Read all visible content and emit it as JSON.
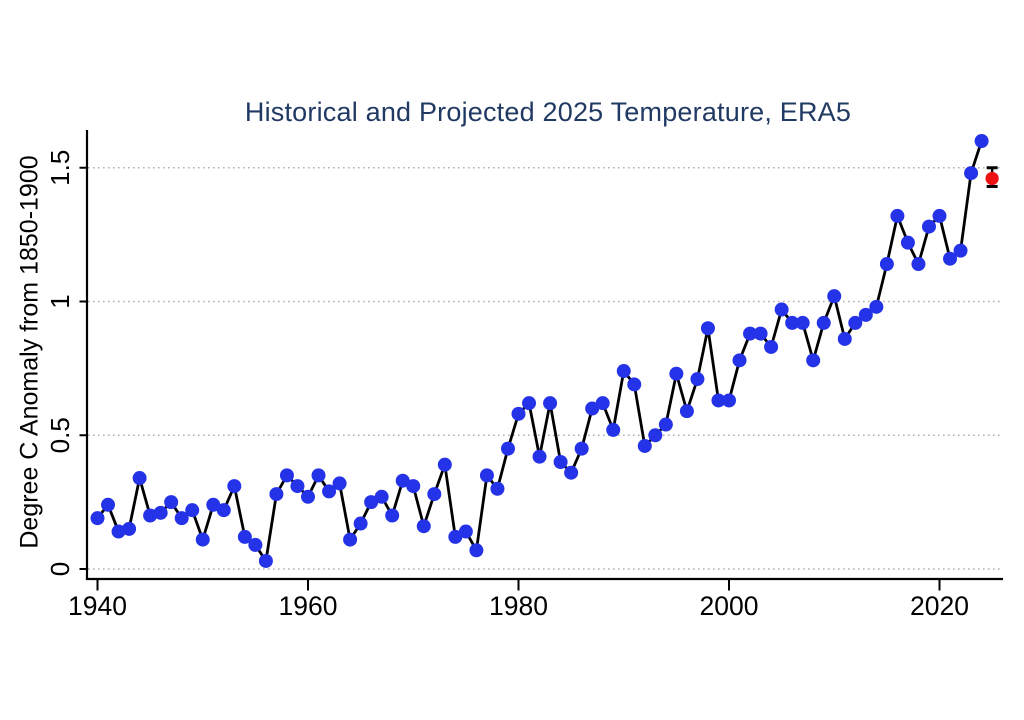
{
  "page": {
    "background": "#ffffff"
  },
  "chart_data": {
    "type": "line",
    "title": "Historical and Projected 2025 Temperature, ERA5",
    "title_color": "#213a63",
    "xlabel": "",
    "ylabel": "Degree C Anomaly from 1850-1900",
    "xlim": [
      1939,
      2026.5
    ],
    "ylim": [
      0,
      1.68
    ],
    "x_ticks": [
      1940,
      1960,
      1980,
      2000,
      2020
    ],
    "y_ticks": [
      0,
      0.5,
      1,
      1.5
    ],
    "y_tick_labels": [
      "0",
      "0.5",
      "1",
      "1.5"
    ],
    "grid": "horizontal dotted gridlines at y ticks",
    "legend_position": "none",
    "colors": {
      "historical_marker": "#2433e8",
      "historical_line": "#000000",
      "projected_marker": "#ee1111",
      "error_bar": "#000000",
      "gridline": "#b0b0b0",
      "axis": "#000000"
    },
    "series": [
      {
        "name": "historical-era5",
        "style": "connected line with circle markers",
        "x": [
          1940,
          1941,
          1942,
          1943,
          1944,
          1945,
          1946,
          1947,
          1948,
          1949,
          1950,
          1951,
          1952,
          1953,
          1954,
          1955,
          1956,
          1957,
          1958,
          1959,
          1960,
          1961,
          1962,
          1963,
          1964,
          1965,
          1966,
          1967,
          1968,
          1969,
          1970,
          1971,
          1972,
          1973,
          1974,
          1975,
          1976,
          1977,
          1978,
          1979,
          1980,
          1981,
          1982,
          1983,
          1984,
          1985,
          1986,
          1987,
          1988,
          1989,
          1990,
          1991,
          1992,
          1993,
          1994,
          1995,
          1996,
          1997,
          1998,
          1999,
          2000,
          2001,
          2002,
          2003,
          2004,
          2005,
          2006,
          2007,
          2008,
          2009,
          2010,
          2011,
          2012,
          2013,
          2014,
          2015,
          2016,
          2017,
          2018,
          2019,
          2020,
          2021,
          2022,
          2023,
          2024
        ],
        "values": [
          0.19,
          0.24,
          0.14,
          0.15,
          0.34,
          0.2,
          0.21,
          0.25,
          0.19,
          0.22,
          0.11,
          0.24,
          0.22,
          0.31,
          0.12,
          0.09,
          0.03,
          0.28,
          0.35,
          0.31,
          0.27,
          0.35,
          0.29,
          0.32,
          0.11,
          0.17,
          0.25,
          0.27,
          0.2,
          0.33,
          0.31,
          0.16,
          0.28,
          0.39,
          0.12,
          0.14,
          0.07,
          0.35,
          0.3,
          0.45,
          0.58,
          0.62,
          0.42,
          0.62,
          0.4,
          0.36,
          0.45,
          0.6,
          0.62,
          0.52,
          0.74,
          0.69,
          0.46,
          0.5,
          0.54,
          0.73,
          0.59,
          0.71,
          0.9,
          0.63,
          0.63,
          0.78,
          0.88,
          0.88,
          0.83,
          0.97,
          0.92,
          0.92,
          0.78,
          0.92,
          1.02,
          0.86,
          0.92,
          0.95,
          0.98,
          1.14,
          1.32,
          1.22,
          1.14,
          1.28,
          1.32,
          1.16,
          1.19,
          1.48,
          1.6
        ]
      },
      {
        "name": "projected-2025",
        "style": "single point with error bar",
        "x": [
          2025
        ],
        "values": [
          1.46
        ],
        "ci_low": 1.43,
        "ci_high": 1.5
      }
    ]
  }
}
